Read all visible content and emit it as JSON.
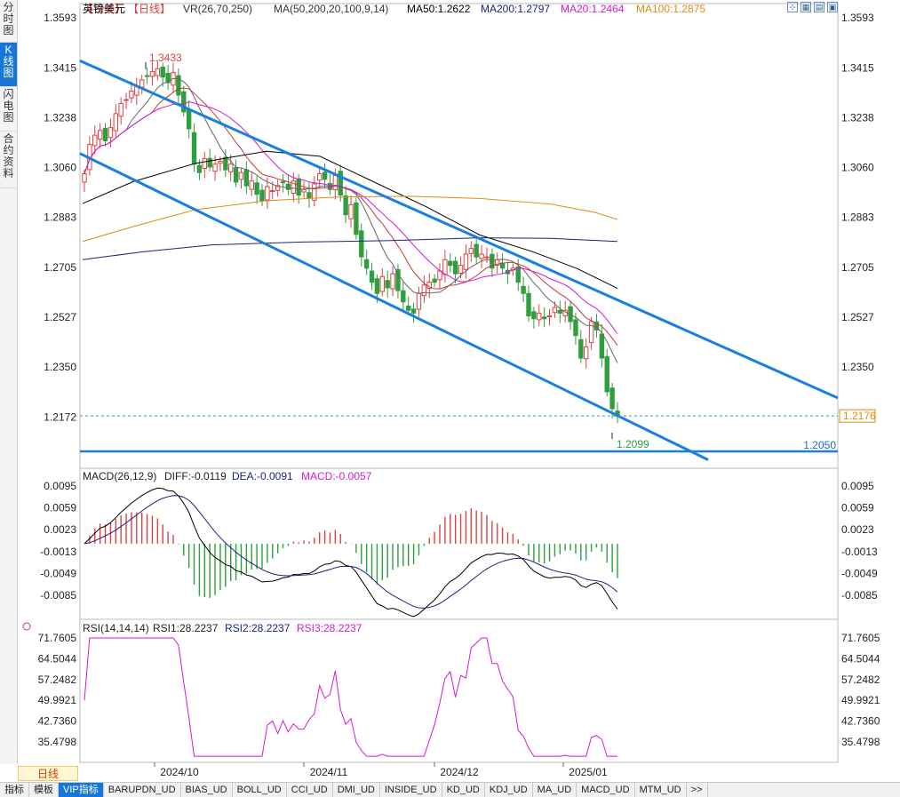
{
  "sidebar": {
    "tabs": [
      {
        "label": "分时图",
        "active": false
      },
      {
        "label": "K线图",
        "active": true
      },
      {
        "label": "闪电图",
        "active": false
      },
      {
        "label": "合约资料",
        "active": false
      }
    ]
  },
  "header": {
    "symbol": "英镑美元",
    "period_tag": "【日线】",
    "vr": "VR(26,70,250)",
    "ma_params": "MA(50,200,20,100,9,14)",
    "ma50": "MA50:1.2622",
    "ma200": "MA200:1.2797",
    "ma20": "MA20:1.2464",
    "ma100": "MA100:1.2875"
  },
  "window_icons": [
    "restore-icon",
    "chart-grid-icon",
    "tile-icon",
    "expand-icon"
  ],
  "colors": {
    "up": "#e04040",
    "down": "#2e9e3e",
    "ma50": "#000000",
    "ma200": "#1a237e",
    "ma20": "#d21ad2",
    "ma100": "#e08a10",
    "ma9": "#666666",
    "ma14": "#c23a3a",
    "channel": "#1a7fe0",
    "dif": "#000000",
    "dea": "#1a237e",
    "rsi": "#d21ad2"
  },
  "price_panel": {
    "y_ticks": [
      "1.3593",
      "1.3415",
      "1.3238",
      "1.3060",
      "1.2883",
      "1.2705",
      "1.2527",
      "1.2350",
      "1.2172"
    ],
    "high_label": "1.3433",
    "low_label": "1.2099",
    "last_price": "1.2176",
    "support_label": "1.2050"
  },
  "macd_panel": {
    "title": "MACD(26,12,9)",
    "diff": "DIFF:-0.0119",
    "dea": "DEA:-0.0091",
    "macd": "MACD:-0.0057",
    "y_ticks": [
      "0.0095",
      "0.0059",
      "0.0023",
      "-0.0013",
      "-0.0049",
      "-0.0085"
    ]
  },
  "rsi_panel": {
    "title": "RSI(14,14,14)",
    "rsi1": "RSI1:28.2237",
    "rsi2": "RSI2:28.2237",
    "rsi3": "RSI3:28.2237",
    "y_ticks": [
      "71.7605",
      "64.5044",
      "57.2482",
      "49.9921",
      "42.7360",
      "35.4798"
    ]
  },
  "x_axis": {
    "month_labels": [
      "2024/10",
      "2024/11",
      "2024/12",
      "2025/01"
    ]
  },
  "timeframe_button": "日线",
  "bottom_tabs": [
    "指标",
    "模板",
    "VIP指标",
    "BARUPDN_UD",
    "BIAS_UD",
    "BOLL_UD",
    "CCI_UD",
    "DMI_UD",
    "INSIDE_UD",
    "KD_UD",
    "KDJ_UD",
    "MA_UD",
    "MACD_UD",
    "MTM_UD",
    ">>"
  ],
  "chart_data": {
    "type": "candlestick",
    "closes": [
      1.3038,
      1.3142,
      1.3175,
      1.3192,
      1.3155,
      1.3202,
      1.3252,
      1.3288,
      1.3302,
      1.3332,
      1.3348,
      1.3372,
      1.3386,
      1.3402,
      1.3412,
      1.3382,
      1.3362,
      1.3398,
      1.3318,
      1.3258,
      1.3198,
      1.3072,
      1.3042,
      1.3092,
      1.3062,
      1.3072,
      1.3082,
      1.3052,
      1.3072,
      1.3008,
      1.3042,
      1.2995,
      1.3012,
      1.2965,
      1.2942,
      1.2992,
      1.2978,
      1.2996,
      1.3006,
      1.2982,
      1.3012,
      1.2962,
      1.2982,
      1.2952,
      1.3002,
      1.3038,
      1.3018,
      1.2982,
      1.3032,
      1.2962,
      1.2892,
      1.2928,
      1.2822,
      1.2742,
      1.2702,
      1.2652,
      1.2612,
      1.2672,
      1.2632,
      1.2682,
      1.2622,
      1.2582,
      1.2552,
      1.2542,
      1.2612,
      1.2642,
      1.2652,
      1.2652,
      1.2692,
      1.2732,
      1.2712,
      1.2682,
      1.2712,
      1.2752,
      1.2772,
      1.2742,
      1.2752,
      1.2742,
      1.2702,
      1.2732,
      1.2702,
      1.2682,
      1.2702,
      1.2652,
      1.2612,
      1.2532,
      1.2522,
      1.2542,
      1.2522,
      1.2532,
      1.2562,
      1.2542,
      1.2552,
      1.2512,
      1.2462,
      1.2382,
      1.2422,
      1.2512,
      1.2482,
      1.2382,
      1.2262,
      1.2202,
      1.2176
    ],
    "high": 1.3433,
    "low": 1.2099,
    "last": 1.2176,
    "support": 1.205,
    "y_range": [
      1.205,
      1.3593
    ],
    "macd_hist_range": [
      -0.0085,
      0.0095
    ],
    "rsi_range": [
      35.4798,
      71.7605
    ]
  }
}
